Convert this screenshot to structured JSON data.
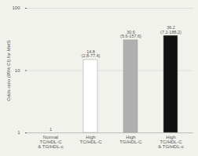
{
  "chart_data": {
    "type": "bar",
    "categories": [
      "Normal\nTC/HDL-C\n& TG/HDL-c",
      "High\nTC/HDL-C",
      "High\nTG/HDL-C",
      "High\nTC/HDL-C\n& TG/HDL-c"
    ],
    "values": [
      1,
      14.8,
      30.6,
      36.2
    ],
    "colors": [
      "white",
      "white",
      "#b0b0b0",
      "#111111"
    ],
    "annotations": [
      "1",
      "14.8\n(2.8-77.4)",
      "30.6\n(5.6-157.6)",
      "36.2\n(7.2-188.2)"
    ],
    "ylabel": "Odds ratio (95% CI) for MetS",
    "log": "y",
    "ylim": [
      1,
      100
    ],
    "yticks": [
      1,
      10,
      100
    ],
    "grid": true
  }
}
